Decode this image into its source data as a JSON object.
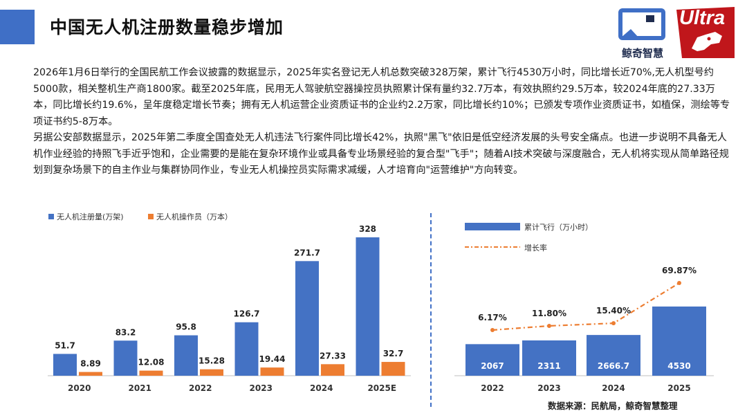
{
  "header": {
    "title": "中国无人机注册数量稳步增加",
    "logo_left_name": "鲸奇智慧",
    "logo_right_name": "Ultra"
  },
  "paragraphs": [
    "2026年1月6日举行的全国民航工作会议披露的数据显示，2025年实名登记无人机总数突破328万架，累计飞行4530万小时，同比增长近70%,无人机型号约5000款，相关整机生产商1800家。截至2025年底，民用无人驾驶航空器操控员执照累计保有量约32.7万本，有效执照约29.5万本，较2024年底的27.33万本，同比增长约19.6%，呈年度稳定增长节奏；拥有无人机运营企业资质证书的企业约2.2万家，同比增长约10%；已颁发专项作业资质证书，如植保，测绘等专项证书约5-8万本。",
    "另据公安部数据显示，2025年第二季度全国查处无人机违法飞行案件同比增长42%，执照\"黑飞\"依旧是低空经济发展的头号安全痛点。也进一步说明不具备无人机作业经验的持照飞手近乎饱和，企业需要的是能在复杂环境作业或具备专业场景经验的复合型\"飞手\"；随着AI技术突破与深度融合，无人机将实现从简单路径规划到复杂场景下的自主作业与集群协同作业，专业无人机操控员实际需求减缓，人才培育向\"运营维护\"方向转变。"
  ],
  "chart_data": [
    {
      "type": "bar",
      "title": "",
      "categories": [
        "2020",
        "2021",
        "2022",
        "2023",
        "2024",
        "2025E"
      ],
      "series": [
        {
          "name": "无人机注册量(万架)",
          "values": [
            51.7,
            83.2,
            95.8,
            126.7,
            271.7,
            328
          ],
          "labels": [
            "51.7",
            "83.2",
            "95.8",
            "126.7",
            "271.7",
            "328"
          ],
          "color": "#4472c4"
        },
        {
          "name": "无人机操作员（万本）",
          "values": [
            8.89,
            12.08,
            15.28,
            19.44,
            27.33,
            32.7
          ],
          "labels": [
            "8.89",
            "12.08",
            "15.28",
            "19.44",
            "27.33",
            "32.7"
          ],
          "color": "#ed7d31"
        }
      ],
      "legend": "top-left",
      "grid": false,
      "ylim": [
        0,
        328
      ]
    },
    {
      "type": "bar+line",
      "categories": [
        "2022",
        "2023",
        "2024",
        "2025"
      ],
      "series": [
        {
          "name": "累计飞行（万小时）",
          "kind": "bar",
          "values": [
            2067,
            2311,
            2666.7,
            4530
          ],
          "labels": [
            "2067",
            "2311",
            "2666.7",
            "4530"
          ],
          "color": "#4472c4"
        },
        {
          "name": "增长率",
          "kind": "line",
          "values": [
            6.17,
            11.8,
            15.4,
            69.87
          ],
          "labels": [
            "6.17%",
            "11.80%",
            "15.40%",
            "69.87%"
          ],
          "color": "#ed7d31"
        }
      ],
      "legend": "top-left",
      "grid": false
    }
  ],
  "footer": {
    "source": "数据来源：民航局，鲸奇智慧整理"
  },
  "colors": {
    "accent": "#3f6fc6",
    "bar_blue": "#4472c4",
    "bar_orange": "#ed7d31",
    "logo_red": "#c0161b",
    "logo_navy": "#1f2c4e"
  }
}
